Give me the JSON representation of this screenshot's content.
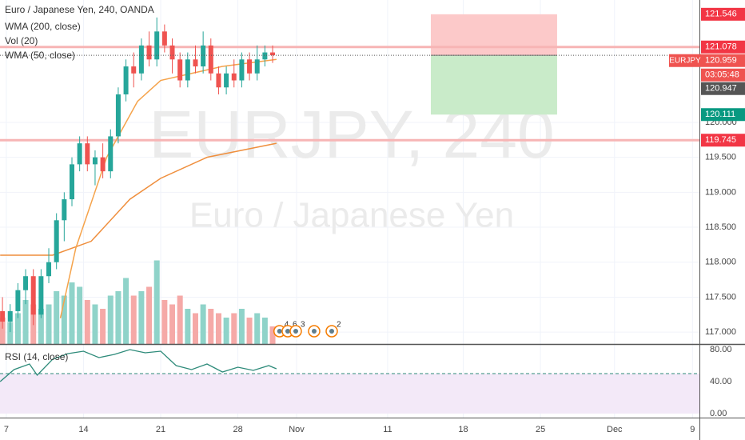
{
  "chart_data": [
    {
      "type": "candlestick",
      "title": "Euro / Japanese Yen, 240, OANDA",
      "watermark": [
        "EURJPY, 240",
        "Euro / Japanese Yen"
      ],
      "up_color": "#26a69a",
      "down_color": "#ef5350",
      "x": [
        -0.25,
        0.25,
        0.75,
        1.25,
        1.75,
        2.25,
        2.75,
        3.25,
        3.75,
        4.25,
        4.75,
        5.25,
        5.75,
        6.25,
        6.75,
        7.25,
        7.75,
        8.25,
        8.75,
        9.25,
        9.75,
        10.25,
        10.75,
        11.25,
        11.75,
        12.25,
        12.75,
        13.25,
        13.75,
        14.25,
        14.75,
        15.25,
        15.75,
        16.25,
        16.75,
        17.25
      ],
      "ohlc": [
        [
          117.3,
          117.5,
          117.05,
          117.15
        ],
        [
          117.15,
          117.4,
          117.0,
          117.3
        ],
        [
          117.3,
          117.7,
          117.2,
          117.6
        ],
        [
          117.6,
          117.9,
          117.4,
          117.8
        ],
        [
          117.8,
          117.9,
          117.1,
          117.25
        ],
        [
          117.25,
          117.9,
          117.2,
          117.8
        ],
        [
          117.8,
          118.2,
          117.7,
          118.0
        ],
        [
          118.0,
          118.7,
          117.9,
          118.6
        ],
        [
          118.6,
          119.0,
          118.3,
          118.9
        ],
        [
          118.9,
          119.5,
          118.8,
          119.4
        ],
        [
          119.4,
          119.8,
          119.3,
          119.7
        ],
        [
          119.7,
          119.8,
          119.3,
          119.4
        ],
        [
          119.4,
          119.6,
          119.1,
          119.5
        ],
        [
          119.5,
          119.7,
          119.2,
          119.3
        ],
        [
          119.3,
          119.9,
          119.2,
          119.8
        ],
        [
          119.8,
          120.5,
          119.7,
          120.4
        ],
        [
          120.4,
          120.9,
          120.3,
          120.8
        ],
        [
          120.8,
          121.0,
          120.5,
          120.7
        ],
        [
          120.7,
          121.2,
          120.6,
          121.1
        ],
        [
          121.1,
          121.3,
          120.8,
          120.9
        ],
        [
          120.9,
          121.5,
          120.8,
          121.3
        ],
        [
          121.3,
          121.4,
          121.0,
          121.1
        ],
        [
          121.1,
          121.2,
          120.7,
          120.9
        ],
        [
          120.9,
          121.0,
          120.5,
          120.6
        ],
        [
          120.6,
          121.0,
          120.5,
          120.9
        ],
        [
          120.9,
          121.1,
          120.7,
          120.8
        ],
        [
          120.8,
          121.3,
          120.7,
          121.1
        ],
        [
          121.1,
          121.2,
          120.6,
          120.7
        ],
        [
          120.7,
          120.8,
          120.4,
          120.5
        ],
        [
          120.5,
          120.8,
          120.4,
          120.7
        ],
        [
          120.7,
          120.9,
          120.5,
          120.6
        ],
        [
          120.6,
          121.0,
          120.5,
          120.9
        ],
        [
          120.9,
          121.0,
          120.6,
          120.7
        ],
        [
          120.7,
          121.1,
          120.6,
          120.9
        ],
        [
          120.9,
          121.1,
          120.8,
          121.0
        ],
        [
          121.0,
          121.1,
          120.85,
          120.96
        ]
      ],
      "volume": {
        "name": "Vol (20)",
        "up_color": "#8fd3c9",
        "down_color": "#f5a9a7",
        "ylim": [
          0,
          100
        ],
        "values": [
          30,
          25,
          35,
          50,
          45,
          40,
          45,
          60,
          55,
          70,
          65,
          50,
          45,
          40,
          55,
          60,
          75,
          55,
          60,
          65,
          95,
          50,
          45,
          55,
          40,
          35,
          45,
          40,
          35,
          30,
          35,
          40,
          30,
          35,
          30,
          20
        ]
      },
      "series": [
        {
          "name": "WMA (200, close)",
          "color": "#ef8e3c",
          "x": [
            -0.4,
            3,
            5.5,
            8,
            10,
            13,
            17.5
          ],
          "values": [
            118.1,
            118.1,
            118.3,
            118.9,
            119.2,
            119.5,
            119.7
          ]
        },
        {
          "name": "WMA (50, close)",
          "color": "#f5a34b",
          "x": [
            3.5,
            4.5,
            6.5,
            8.5,
            10,
            12,
            14,
            17.5
          ],
          "values": [
            117.2,
            118.2,
            119.5,
            120.3,
            120.6,
            120.7,
            120.8,
            120.9
          ]
        }
      ],
      "hlines": [
        {
          "value": 121.078,
          "label": "121.078",
          "color": "#f7b5b5"
        },
        {
          "value": 119.745,
          "label": "119.745",
          "color": "#f7b5b5"
        }
      ],
      "last": {
        "value": 120.959,
        "label": "120.959",
        "symbol": "EURJPY",
        "countdown": "03:05:48"
      },
      "bid": {
        "value": 120.947,
        "label": "120.947"
      },
      "position": {
        "x": [
          27.5,
          35.68
        ],
        "stop": {
          "value": 121.546,
          "label": "121.546"
        },
        "entry": 120.959,
        "target": {
          "value": 120.111,
          "label": "120.111"
        }
      },
      "events": [
        {
          "x": 17.7,
          "count": 4
        },
        {
          "x": 18.23,
          "count": 6
        },
        {
          "x": 18.75,
          "count": 3
        },
        {
          "x": 19.94
        },
        {
          "x": 21.08,
          "count": 2
        }
      ],
      "xlim": [
        -0.41,
        44.9
      ],
      "xticks": [
        {
          "value": 0,
          "label": "7"
        },
        {
          "value": 5,
          "label": "14"
        },
        {
          "value": 10,
          "label": "21"
        },
        {
          "value": 15,
          "label": "28"
        },
        {
          "value": 18.8,
          "label": "Nov"
        },
        {
          "value": 24.7,
          "label": "11"
        },
        {
          "value": 29.6,
          "label": "18"
        },
        {
          "value": 34.6,
          "label": "25"
        },
        {
          "value": 39.4,
          "label": "Dec"
        },
        {
          "value": 44.45,
          "label": "9"
        }
      ],
      "ylim": [
        116.83,
        121.75
      ],
      "yticks": [
        {
          "value": 120,
          "label": "120.000"
        },
        {
          "value": 119.5,
          "label": "119.500"
        },
        {
          "value": 119,
          "label": "119.000"
        },
        {
          "value": 118.5,
          "label": "118.500"
        },
        {
          "value": 118,
          "label": "118.000"
        },
        {
          "value": 117.5,
          "label": "117.500"
        },
        {
          "value": 117,
          "label": "117.000"
        }
      ],
      "grid": true
    },
    {
      "type": "line",
      "title": "RSI (14, close)",
      "series": [
        {
          "name": "RSI",
          "color": "#2e8b7a",
          "x": [
            -0.4,
            0.5,
            1.5,
            2,
            3,
            4,
            5,
            6,
            7,
            8,
            9,
            10,
            11,
            12,
            13,
            14,
            15,
            16,
            17,
            17.5
          ],
          "values": [
            40,
            55,
            62,
            48,
            68,
            75,
            78,
            70,
            74,
            80,
            76,
            78,
            60,
            55,
            62,
            52,
            58,
            54,
            60,
            56
          ]
        }
      ],
      "hline": 50,
      "band": [
        0,
        50
      ],
      "band_color": "#f3e9f8",
      "ylim": [
        -5,
        86
      ],
      "yticks": [
        {
          "value": 80,
          "label": "80.00"
        },
        {
          "value": 40,
          "label": "40.00"
        },
        {
          "value": 0,
          "label": "0.00"
        }
      ]
    }
  ]
}
